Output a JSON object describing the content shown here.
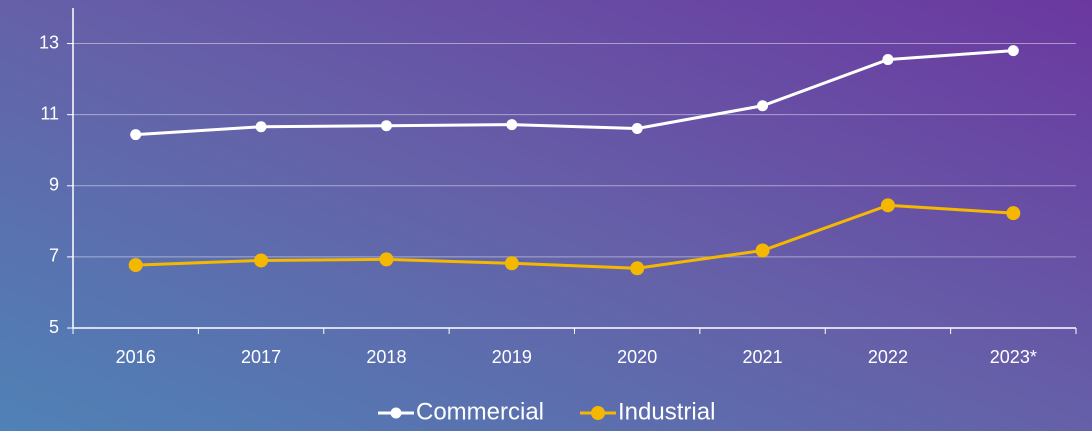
{
  "chart_data": {
    "type": "line",
    "categories": [
      "2016",
      "2017",
      "2018",
      "2019",
      "2020",
      "2021",
      "2022",
      "2023*"
    ],
    "series": [
      {
        "name": "Commercial",
        "color": "#ffffff",
        "values": [
          10.44,
          10.66,
          10.69,
          10.72,
          10.61,
          11.25,
          12.55,
          12.8
        ]
      },
      {
        "name": "Industrial",
        "color": "#f5b800",
        "values": [
          6.77,
          6.9,
          6.93,
          6.82,
          6.68,
          7.18,
          8.45,
          8.23
        ]
      }
    ],
    "ylim": [
      5,
      14
    ],
    "yticks": [
      5,
      7,
      9,
      11,
      13
    ],
    "grid": true,
    "legend": "bottom"
  }
}
